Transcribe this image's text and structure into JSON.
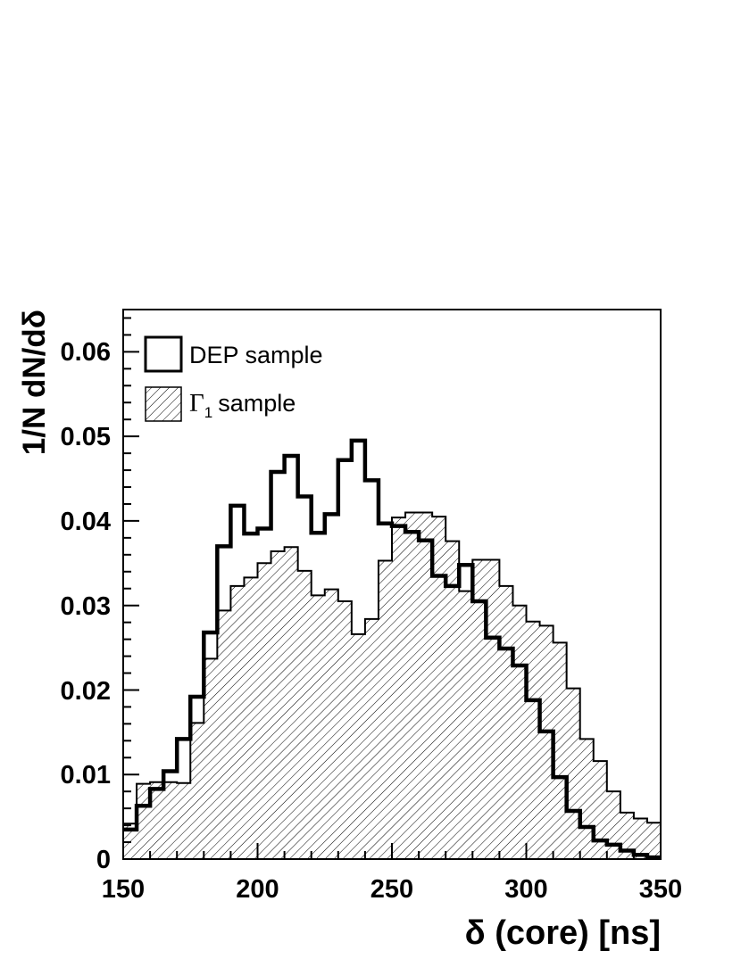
{
  "chart_data": {
    "type": "area",
    "xlabel": "δ (core) [ns]",
    "ylabel": "1/N dN/dδ",
    "xlim": [
      150,
      350
    ],
    "ylim": [
      0,
      0.065
    ],
    "bin_width": 5,
    "x_ticks": [
      "150",
      "200",
      "250",
      "300",
      "350"
    ],
    "y_ticks": [
      "0",
      "0.01",
      "0.02",
      "0.03",
      "0.04",
      "0.05",
      "0.06"
    ],
    "legend_position": "top-left",
    "series": [
      {
        "name": "DEP sample",
        "style": "thick-outline",
        "color": "#000000",
        "bin_starts": [
          150,
          155,
          160,
          165,
          170,
          175,
          180,
          185,
          190,
          195,
          200,
          205,
          210,
          215,
          220,
          225,
          230,
          235,
          240,
          245,
          250,
          255,
          260,
          265,
          270,
          275,
          280,
          285,
          290,
          295,
          300,
          305,
          310,
          315,
          320,
          325,
          330,
          335,
          340,
          345
        ],
        "values": [
          0.0035,
          0.0063,
          0.0083,
          0.0104,
          0.0142,
          0.0192,
          0.0268,
          0.037,
          0.0418,
          0.0385,
          0.0391,
          0.0458,
          0.0477,
          0.0429,
          0.0386,
          0.0408,
          0.0472,
          0.0495,
          0.0448,
          0.0397,
          0.0394,
          0.0387,
          0.0377,
          0.0335,
          0.0323,
          0.0348,
          0.0305,
          0.0262,
          0.0249,
          0.0229,
          0.0188,
          0.0151,
          0.0097,
          0.0057,
          0.0038,
          0.0022,
          0.0017,
          0.001,
          0.0005,
          0.0002
        ]
      },
      {
        "name": "Γ1 sample",
        "style": "hatched",
        "color": "#000000",
        "bin_starts": [
          150,
          155,
          160,
          165,
          170,
          175,
          180,
          185,
          190,
          195,
          200,
          205,
          210,
          215,
          220,
          225,
          230,
          235,
          240,
          245,
          250,
          255,
          260,
          265,
          270,
          275,
          280,
          285,
          290,
          295,
          300,
          305,
          310,
          315,
          320,
          325,
          330,
          335,
          340,
          345
        ],
        "values": [
          0.0042,
          0.0089,
          0.0091,
          0.0091,
          0.009,
          0.0161,
          0.0237,
          0.0294,
          0.0323,
          0.0333,
          0.035,
          0.0364,
          0.0369,
          0.0341,
          0.0312,
          0.0319,
          0.0305,
          0.0266,
          0.0284,
          0.0353,
          0.0404,
          0.041,
          0.041,
          0.0405,
          0.0376,
          0.0317,
          0.0354,
          0.0354,
          0.0323,
          0.03,
          0.0281,
          0.0276,
          0.0256,
          0.0202,
          0.0142,
          0.0116,
          0.008,
          0.0055,
          0.0048,
          0.0043
        ]
      }
    ]
  }
}
